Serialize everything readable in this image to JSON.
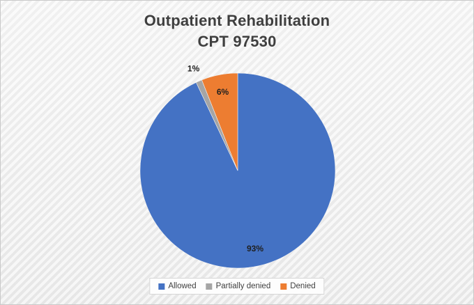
{
  "chart": {
    "title_line1": "Outpatient Rehabilitation",
    "title_line2": "CPT 97530"
  },
  "chart_data": {
    "type": "pie",
    "title": "Outpatient Rehabilitation CPT 97530",
    "categories": [
      "Allowed",
      "Partially denied",
      "Denied"
    ],
    "values": [
      93,
      1,
      6
    ],
    "labels": [
      "93%",
      "1%",
      "6%"
    ],
    "colors": [
      "#4472C4",
      "#A5A5A5",
      "#ED7D31"
    ],
    "legend_position": "bottom",
    "start_angle_deg": 0,
    "direction": "clockwise",
    "grid": false
  }
}
